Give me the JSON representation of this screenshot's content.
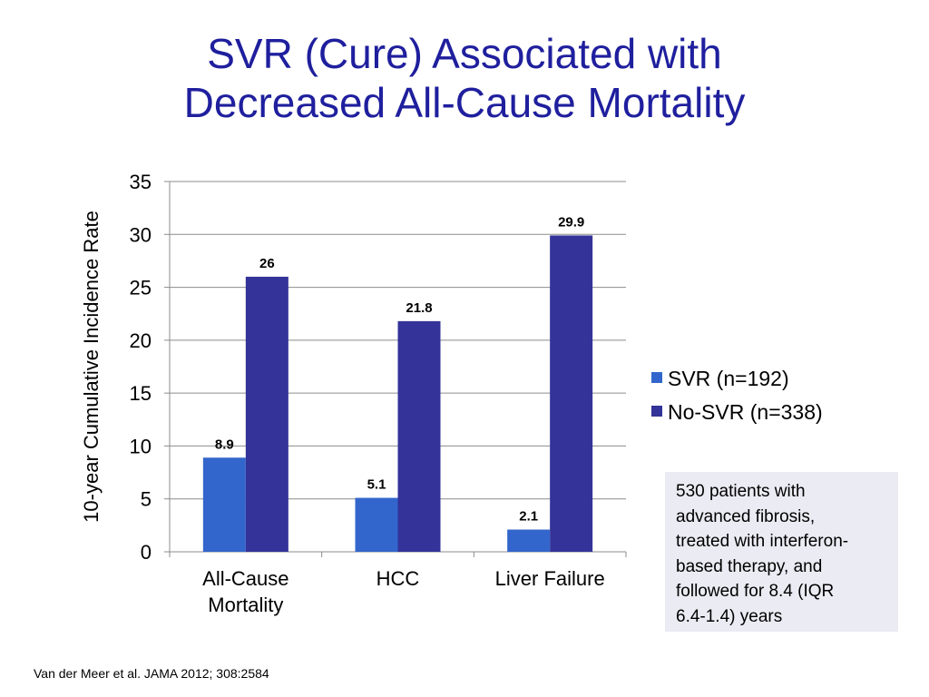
{
  "title": {
    "line1": "SVR (Cure) Associated with",
    "line2": "Decreased All-Cause Mortality"
  },
  "chart_data": {
    "type": "bar",
    "title": "",
    "xlabel": "",
    "ylabel": "10-year Cumulative Incidence Rate",
    "ylim": [
      0,
      35
    ],
    "yticks": [
      0,
      5,
      10,
      15,
      20,
      25,
      30,
      35
    ],
    "grid": true,
    "legend_position": "right",
    "categories": [
      [
        "All-Cause",
        "Mortality"
      ],
      [
        "HCC"
      ],
      [
        "Liver Failure"
      ]
    ],
    "series": [
      {
        "name": "SVR (n=192)",
        "color": "#3366cc",
        "values": [
          8.9,
          5.1,
          2.1
        ],
        "labels": [
          "8.9",
          "5.1",
          "2.1"
        ]
      },
      {
        "name": "No-SVR (n=338)",
        "color": "#333399",
        "values": [
          26,
          21.8,
          29.9
        ],
        "labels": [
          "26",
          "21.8",
          "29.9"
        ]
      }
    ]
  },
  "note": {
    "lines": [
      "530 patients with",
      "advanced fibrosis,",
      "treated with interferon-",
      "based therapy, and",
      "followed for 8.4 (IQR",
      "6.4-1.4) years"
    ]
  },
  "citation": "Van der Meer et al. JAMA 2012; 308:2584"
}
